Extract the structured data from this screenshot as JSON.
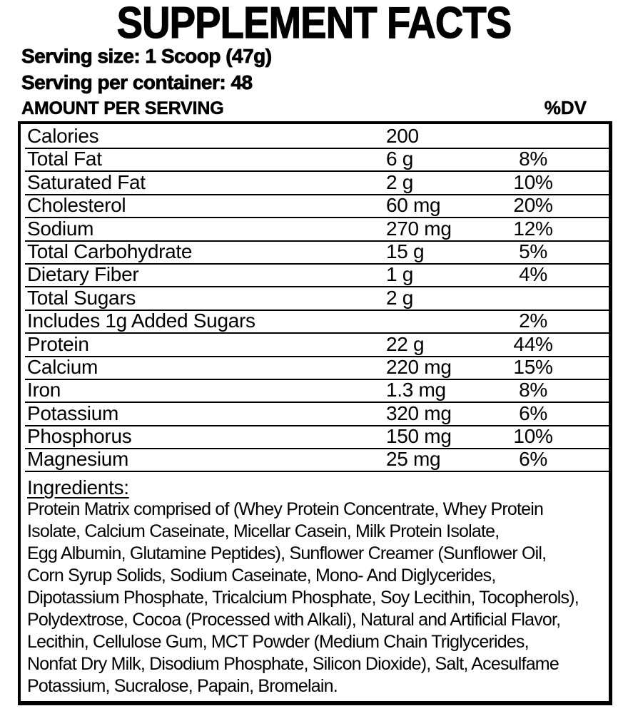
{
  "title": "SUPPLEMENT FACTS",
  "serving": {
    "size_label": "Serving size: 1 Scoop (47g)",
    "per_container_label": "Serving per container: 48"
  },
  "table": {
    "header": {
      "amount_label": "AMOUNT PER SERVING",
      "dv_label": "%DV"
    },
    "rows": [
      {
        "name": "Calories",
        "amount": "200",
        "dv": ""
      },
      {
        "name": "Total Fat",
        "amount": "6 g",
        "dv": "8%"
      },
      {
        "name": "Saturated Fat",
        "amount": "2 g",
        "dv": "10%"
      },
      {
        "name": "Cholesterol",
        "amount": "60 mg",
        "dv": "20%"
      },
      {
        "name": "Sodium",
        "amount": "270 mg",
        "dv": "12%"
      },
      {
        "name": "Total Carbohydrate",
        "amount": "15 g",
        "dv": "5%"
      },
      {
        "name": "Dietary Fiber",
        "amount": "1 g",
        "dv": "4%"
      },
      {
        "name": "Total Sugars",
        "amount": "2 g",
        "dv": ""
      },
      {
        "name": "Includes 1g Added Sugars",
        "amount": "",
        "dv": "2%"
      },
      {
        "name": "Protein",
        "amount": "22 g",
        "dv": "44%"
      },
      {
        "name": "Calcium",
        "amount": "220 mg",
        "dv": "15%"
      },
      {
        "name": "Iron",
        "amount": "1.3 mg",
        "dv": "8%"
      },
      {
        "name": "Potassium",
        "amount": "320 mg",
        "dv": "6%"
      },
      {
        "name": "Phosphorus",
        "amount": "150 mg",
        "dv": "10%"
      },
      {
        "name": "Magnesium",
        "amount": "25 mg",
        "dv": "6%"
      }
    ]
  },
  "ingredients": {
    "heading": "Ingredients:",
    "lines": [
      "Protein Matrix comprised of (Whey Protein Concentrate, Whey Protein",
      "Isolate, Calcium Caseinate, Micellar Casein, Milk Protein Isolate,",
      "Egg Albumin, Glutamine Peptides), Sunflower Creamer (Sunflower Oil,",
      "Corn Syrup Solids, Sodium Caseinate, Mono- And Diglycerides,",
      "Dipotassium Phosphate, Tricalcium Phosphate, Soy Lecithin, Tocopherols),",
      "Polydextrose, Cocoa (Processed with Alkali), Natural and Artificial Flavor,",
      "Lecithin, Cellulose Gum, MCT Powder (Medium Chain Triglycerides,",
      "Nonfat Dry Milk, Disodium Phosphate, Silicon Dioxide), Salt, Acesulfame",
      "Potassium, Sucralose, Papain, Bromelain."
    ]
  },
  "colors": {
    "text": "#000000",
    "background": "#ffffff",
    "border": "#000000"
  }
}
